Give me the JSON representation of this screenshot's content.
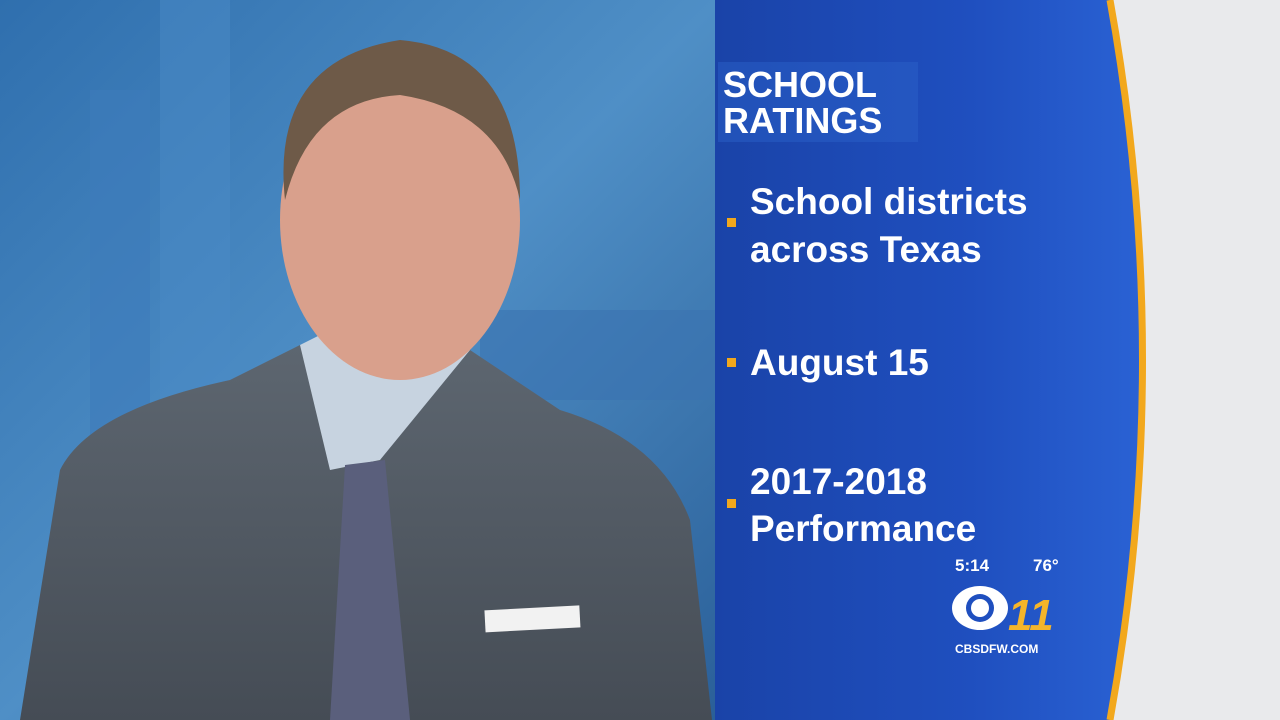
{
  "graphic": {
    "title_lines": [
      "SCHOOL",
      "RATINGS"
    ],
    "bullets": [
      {
        "lines": [
          "School districts",
          "across Texas"
        ]
      },
      {
        "lines": [
          "August 15"
        ]
      },
      {
        "lines": [
          "2017-2018",
          "Performance"
        ]
      }
    ]
  },
  "bug": {
    "time": "5:14",
    "temperature": "76°",
    "channel": "11",
    "website": "CBSDFW.COM"
  }
}
